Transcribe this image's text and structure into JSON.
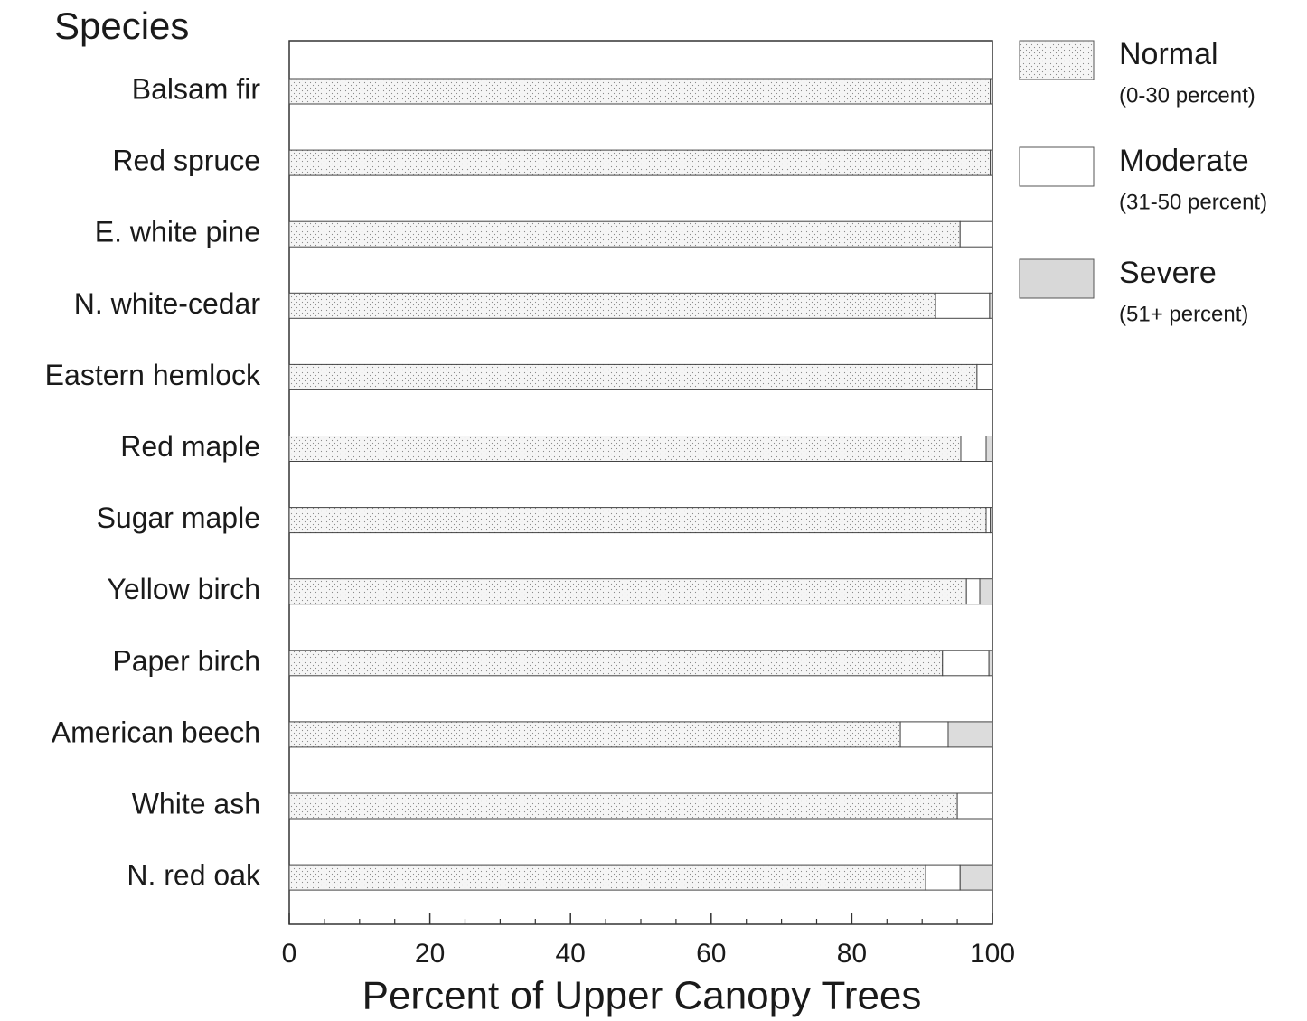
{
  "chart_data": {
    "type": "stacked_barh",
    "title": "Species",
    "x_label": "Percent of Upper Canopy Trees",
    "categories": [
      "Balsam fir",
      "Red spruce",
      "E. white pine",
      "N. white-cedar",
      "Eastern hemlock",
      "Red maple",
      "Sugar maple",
      "Yellow birch",
      "Paper birch",
      "American beech",
      "White ash",
      "N. red oak"
    ],
    "series": [
      {
        "name": "Normal",
        "range_label": "(0-30 percent)",
        "color": "#f2f2f2",
        "pattern": "dots",
        "values": [
          99.7,
          99.7,
          95.4,
          91.9,
          97.8,
          95.5,
          99.1,
          96.3,
          92.9,
          86.9,
          95.0,
          90.5
        ]
      },
      {
        "name": "Moderate",
        "range_label": "(31-50 percent)",
        "color": "#ffffff",
        "pattern": "none",
        "values": [
          0.3,
          0.3,
          4.6,
          7.7,
          2.2,
          3.6,
          0.6,
          1.9,
          6.6,
          6.8,
          5.0,
          4.9
        ]
      },
      {
        "name": "Severe",
        "range_label": "(51+ percent)",
        "color": "#d8d8d8",
        "pattern": "dots",
        "values": [
          0,
          0,
          0,
          0.4,
          0,
          0.9,
          0.3,
          1.8,
          0.5,
          6.3,
          0,
          4.6
        ]
      }
    ],
    "xlim": [
      0,
      100
    ],
    "xticks": [
      0,
      20,
      40,
      60,
      80,
      100
    ],
    "xminorticks": [
      5,
      10,
      15,
      25,
      30,
      35,
      45,
      50,
      55,
      65,
      70,
      75,
      85,
      90,
      95
    ],
    "legend": "right"
  }
}
